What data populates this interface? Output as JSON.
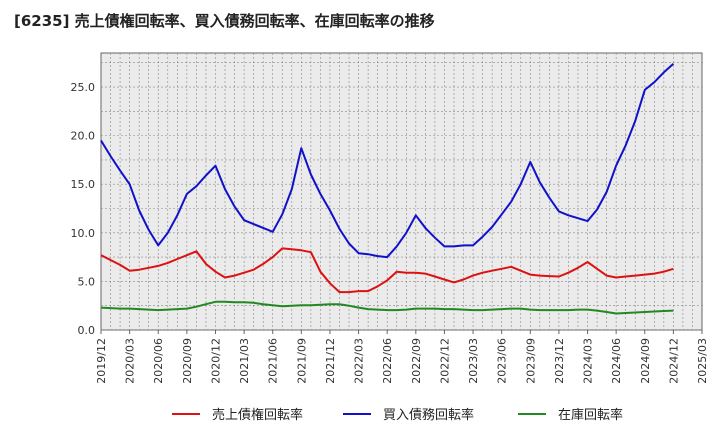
{
  "chart_data": {
    "type": "line",
    "title": "[6235]  売上債権回転率、買入債務回転率、在庫回転率の推移",
    "xlabel": "",
    "ylabel": "",
    "ylim": [
      0,
      28.5
    ],
    "yticks": [
      0,
      5,
      10,
      15,
      20,
      25
    ],
    "ytick_labels": [
      "0.0",
      "5.0",
      "10.0",
      "15.0",
      "20.0",
      "25.0"
    ],
    "xticks": [
      "2019/12",
      "2020/03",
      "2020/06",
      "2020/09",
      "2020/12",
      "2021/03",
      "2021/06",
      "2021/09",
      "2021/12",
      "2022/03",
      "2022/06",
      "2022/09",
      "2022/12",
      "2023/03",
      "2023/06",
      "2023/09",
      "2023/12",
      "2024/03",
      "2024/06",
      "2024/09",
      "2024/12",
      "2025/03"
    ],
    "x_months": [
      0,
      1,
      2,
      3,
      4,
      5,
      6,
      7,
      8,
      9,
      10,
      11,
      12,
      13,
      14,
      15,
      16,
      17,
      18,
      19,
      20,
      21,
      22,
      23,
      24,
      25,
      26,
      27,
      28,
      29,
      30,
      31,
      32,
      33,
      34,
      35,
      36,
      37,
      38,
      39,
      40,
      41,
      42,
      43,
      44,
      45,
      46,
      47,
      48,
      49,
      50,
      51,
      52,
      53,
      54,
      55,
      56,
      57,
      58,
      59,
      60
    ],
    "series": [
      {
        "name": "売上債権回転率",
        "color": "#dd1111",
        "values": [
          7.7,
          7.2,
          6.7,
          6.1,
          6.2,
          6.4,
          6.6,
          6.9,
          7.3,
          7.7,
          8.1,
          6.8,
          6.0,
          5.4,
          5.6,
          5.9,
          6.2,
          6.8,
          7.5,
          8.4,
          8.3,
          8.2,
          8.0,
          6.0,
          4.8,
          3.9,
          3.9,
          4.0,
          4.0,
          4.5,
          5.1,
          6.0,
          5.9,
          5.9,
          5.8,
          5.5,
          5.2,
          4.9,
          5.2,
          5.6,
          5.9,
          6.1,
          6.3,
          6.5,
          6.1,
          5.7,
          5.6,
          5.55,
          5.5,
          5.9,
          6.4,
          7.0,
          6.3,
          5.6,
          5.4,
          5.5,
          5.6,
          5.7,
          5.8,
          6.0,
          6.3
        ]
      },
      {
        "name": "買入債務回転率",
        "color": "#1111cc",
        "values": [
          19.5,
          17.9,
          16.4,
          15.0,
          12.3,
          10.3,
          8.7,
          10.0,
          11.8,
          14.0,
          14.8,
          15.9,
          16.9,
          14.5,
          12.7,
          11.3,
          10.9,
          10.5,
          10.1,
          11.9,
          14.5,
          18.7,
          16.0,
          14.0,
          12.3,
          10.4,
          8.9,
          7.9,
          7.8,
          7.6,
          7.5,
          8.6,
          10.0,
          11.8,
          10.5,
          9.5,
          8.6,
          8.6,
          8.7,
          8.7,
          9.6,
          10.6,
          11.9,
          13.2,
          15.0,
          17.3,
          15.2,
          13.6,
          12.2,
          11.8,
          11.5,
          11.2,
          12.4,
          14.2,
          16.9,
          19.0,
          21.5,
          24.7,
          25.5,
          26.5,
          27.4
        ]
      },
      {
        "name": "在庫回転率",
        "color": "#228822",
        "values": [
          2.3,
          2.25,
          2.2,
          2.2,
          2.15,
          2.1,
          2.05,
          2.1,
          2.15,
          2.2,
          2.4,
          2.65,
          2.9,
          2.9,
          2.85,
          2.85,
          2.8,
          2.65,
          2.55,
          2.45,
          2.5,
          2.55,
          2.55,
          2.6,
          2.65,
          2.65,
          2.5,
          2.3,
          2.15,
          2.1,
          2.05,
          2.05,
          2.1,
          2.2,
          2.2,
          2.2,
          2.15,
          2.15,
          2.1,
          2.05,
          2.05,
          2.1,
          2.15,
          2.2,
          2.2,
          2.1,
          2.05,
          2.05,
          2.05,
          2.05,
          2.1,
          2.1,
          2.0,
          1.85,
          1.7,
          1.75,
          1.8,
          1.85,
          1.9,
          1.95,
          2.0
        ]
      }
    ],
    "legend_position": "bottom-center",
    "grid": true
  }
}
